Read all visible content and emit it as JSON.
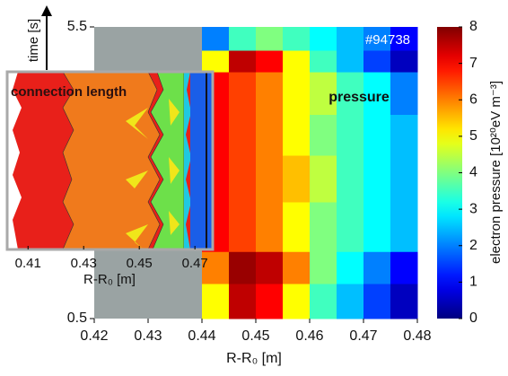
{
  "chart_data": [
    {
      "type": "heatmap",
      "x_label": "R-R₀ [m]",
      "y_label": "time [s]",
      "annotations": [
        "#94738",
        "pressure"
      ],
      "colormap": "jet",
      "xlim": [
        0.42,
        0.48
      ],
      "xticks": [
        0.42,
        0.43,
        0.44,
        0.45,
        0.46,
        0.47,
        0.48
      ],
      "ylim": [
        0.5,
        5.5
      ],
      "yticks": [
        0.5,
        5.5
      ],
      "x_edges": [
        0.42,
        0.425,
        0.43,
        0.435,
        0.44,
        0.445,
        0.45,
        0.455,
        0.46,
        0.465,
        0.47,
        0.475,
        0.48
      ],
      "y_edges": [
        0.5,
        1.1,
        1.65,
        2.5,
        3.3,
        4.0,
        4.73,
        5.1,
        5.5
      ],
      "z": [
        [
          null,
          null,
          null,
          null,
          5,
          7.5,
          7,
          5,
          3.5,
          2.5,
          1.5,
          0.5
        ],
        [
          null,
          null,
          null,
          null,
          6,
          7.8,
          7.5,
          6,
          4,
          3,
          2,
          1
        ],
        [
          null,
          null,
          null,
          null,
          7,
          6.5,
          6,
          5,
          4,
          3.5,
          3,
          2.5
        ],
        [
          null,
          null,
          null,
          null,
          7,
          6.5,
          6,
          5.5,
          4.5,
          3.5,
          3,
          2.5
        ],
        [
          null,
          null,
          null,
          null,
          7,
          6.5,
          6,
          5,
          4,
          3.5,
          3,
          2.5
        ],
        [
          null,
          null,
          null,
          null,
          7,
          6.5,
          6,
          5,
          4.5,
          3.5,
          3,
          2
        ],
        [
          null,
          null,
          null,
          null,
          5,
          7.5,
          7,
          5,
          3.5,
          2.5,
          1.5,
          0.5
        ],
        [
          null,
          null,
          null,
          null,
          2,
          3.5,
          4,
          3.5,
          3,
          2.5,
          2,
          1
        ]
      ],
      "colorbar": {
        "label": "electron pressure [10²⁰eV m⁻³]",
        "lim": [
          0,
          8
        ],
        "ticks": [
          0,
          1,
          2,
          3,
          4,
          5,
          6,
          7,
          8
        ]
      }
    },
    {
      "type": "contour",
      "title": "connection length",
      "x_label": "R-R₀ [m]",
      "xlim": [
        0.4025,
        0.4764
      ],
      "xticks": [
        0.41,
        0.43,
        0.45,
        0.47
      ]
    }
  ]
}
